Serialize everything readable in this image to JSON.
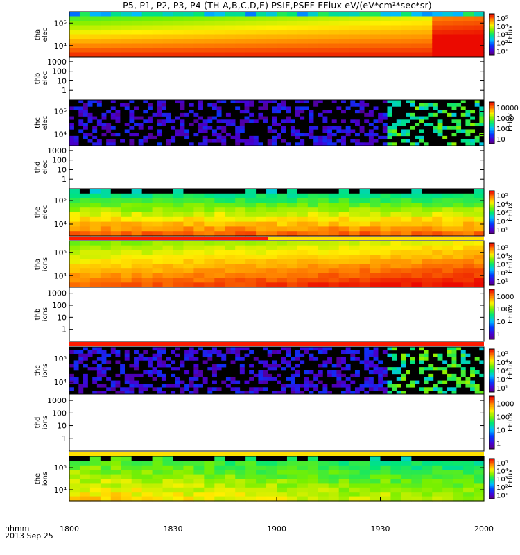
{
  "title": "P5, P1, P2, P3, P4 (TH-A,B,C,D,E) PSIF,PSEF EFlux eV/(eV*cm²*sec*sr)",
  "time_header": [
    "hhmm",
    "2013 Sep 25"
  ],
  "colorbar_unit": "EFlux",
  "chart_data": {
    "type": "heatmap",
    "x_axis": {
      "range": [
        "1800",
        "2000"
      ],
      "ticks": [
        "1800",
        "1830",
        "1900",
        "1930",
        "2000"
      ]
    },
    "panels": [
      {
        "label": [
          "tha",
          "elec"
        ],
        "yticks": [
          "10⁵",
          "10⁴"
        ],
        "colorbar": [
          "10⁵",
          "10⁴",
          "10³",
          "10²",
          "10¹"
        ],
        "data": "spectrogram"
      },
      {
        "label": [
          "thb",
          "elec"
        ],
        "yticks": [
          "1000",
          "100",
          "10",
          "1"
        ],
        "colorbar": [],
        "data": "empty"
      },
      {
        "label": [
          "thc",
          "elec"
        ],
        "yticks": [
          "10⁵",
          "10⁴"
        ],
        "colorbar": [
          "10000",
          "1000",
          "100",
          "10"
        ],
        "data": "sparse"
      },
      {
        "label": [
          "thd",
          "elec"
        ],
        "yticks": [
          "1000",
          "100",
          "10",
          "1"
        ],
        "colorbar": [],
        "data": "empty"
      },
      {
        "label": [
          "the",
          "elec"
        ],
        "yticks": [
          "10⁵",
          "10⁴"
        ],
        "colorbar": [
          "10⁵",
          "10⁴",
          "10³",
          "10²",
          "10¹"
        ],
        "data": "spectrogram"
      },
      {
        "label": [
          "tha",
          "ions"
        ],
        "yticks": [
          "10⁵",
          "10⁴"
        ],
        "colorbar": [
          "10⁵",
          "10⁴",
          "10³",
          "10²",
          "10¹"
        ],
        "data": "spectrogram"
      },
      {
        "label": [
          "thb",
          "ions"
        ],
        "yticks": [
          "1000",
          "100",
          "10",
          "1"
        ],
        "colorbar": [
          "1000",
          "100",
          "10",
          "1"
        ],
        "data": "empty"
      },
      {
        "label": [
          "thc",
          "ions"
        ],
        "yticks": [
          "10⁵",
          "10⁴"
        ],
        "colorbar": [
          "10⁵",
          "10⁴",
          "10³",
          "10²",
          "10¹"
        ],
        "data": "sparse"
      },
      {
        "label": [
          "thd",
          "ions"
        ],
        "yticks": [
          "1000",
          "100",
          "10",
          "1"
        ],
        "colorbar": [
          "1000",
          "100",
          "10",
          "1"
        ],
        "data": "empty"
      },
      {
        "label": [
          "the",
          "ions"
        ],
        "yticks": [
          "10⁵",
          "10⁴"
        ],
        "colorbar": [
          "10⁵",
          "10⁴",
          "10³",
          "10²",
          "10¹"
        ],
        "data": "spectrogram"
      }
    ]
  }
}
